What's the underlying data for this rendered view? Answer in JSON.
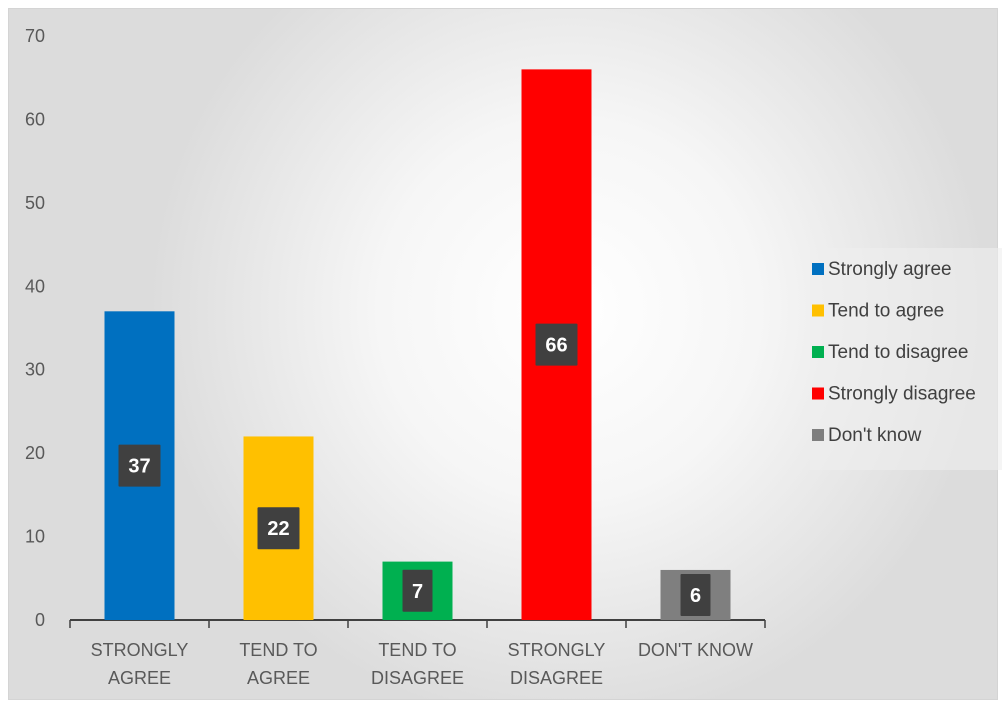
{
  "chart_data": {
    "type": "bar",
    "categories": [
      [
        "STRONGLY",
        "AGREE"
      ],
      [
        "TEND TO",
        "AGREE"
      ],
      [
        "TEND TO",
        "DISAGREE"
      ],
      [
        "STRONGLY",
        "DISAGREE"
      ],
      [
        "DON'T KNOW"
      ]
    ],
    "values": [
      37,
      22,
      7,
      66,
      6
    ],
    "data_labels": [
      "37",
      "22",
      "7",
      "66",
      "6"
    ],
    "colors": [
      "#0070C0",
      "#FFC000",
      "#00B050",
      "#FF0000",
      "#7F7F7F"
    ],
    "legend": [
      "Strongly agree",
      "Tend to agree",
      "Tend to disagree",
      "Strongly disagree",
      "Don't know"
    ],
    "legend_position": "right",
    "y_ticks": [
      "0",
      "10",
      "20",
      "30",
      "40",
      "50",
      "60",
      "70"
    ],
    "ylim": [
      0,
      70
    ],
    "grid": false,
    "title": "",
    "xlabel": "",
    "ylabel": ""
  }
}
